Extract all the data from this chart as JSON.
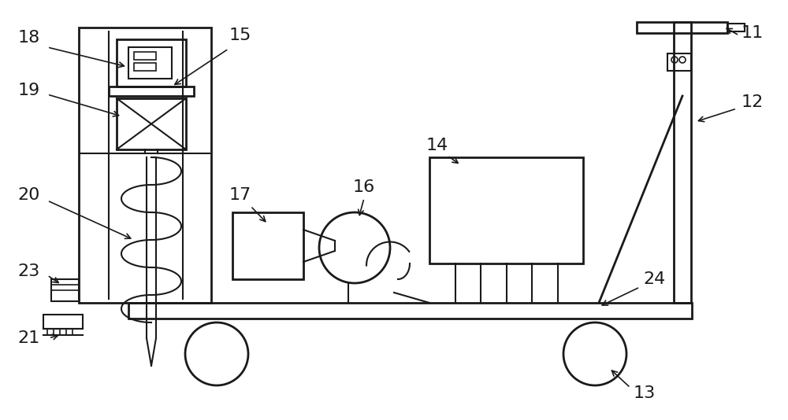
{
  "bg_color": "#ffffff",
  "line_color": "#1a1a1a",
  "lw": 2.0,
  "lw2": 1.5,
  "lw3": 1.2
}
